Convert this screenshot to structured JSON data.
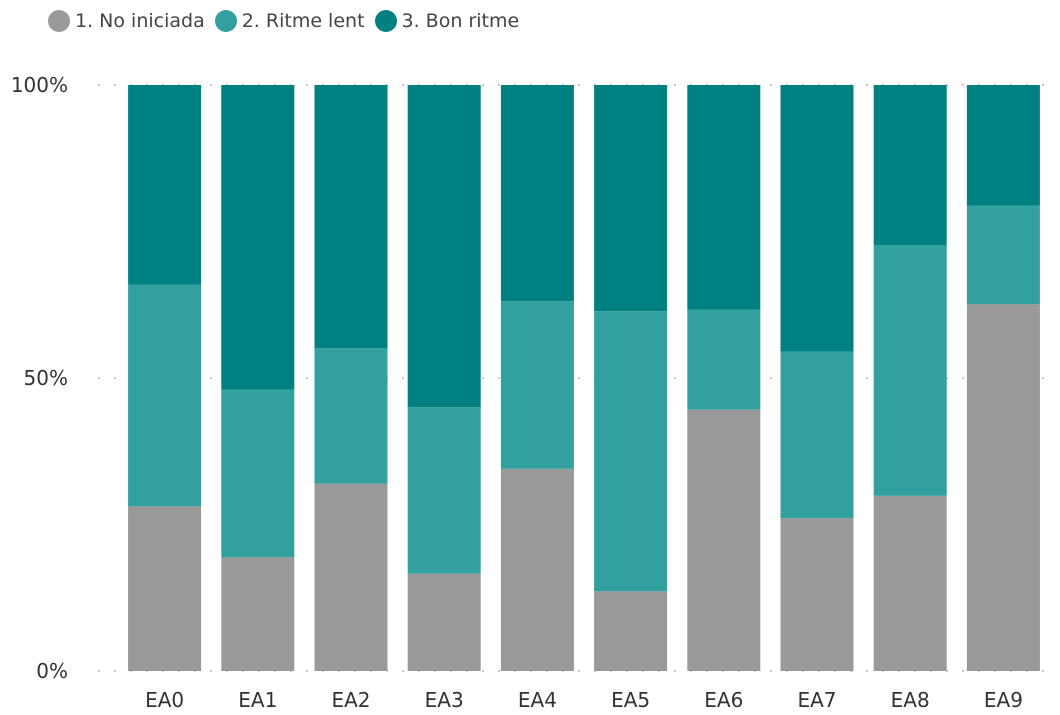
{
  "chart_data": {
    "type": "bar",
    "stacked": true,
    "percent": true,
    "categories": [
      "EA0",
      "EA1",
      "EA2",
      "EA3",
      "EA4",
      "EA5",
      "EA6",
      "EA7",
      "EA8",
      "EA9"
    ],
    "series": [
      {
        "name": "1. No iniciada",
        "color": "#999999",
        "values": [
          28.1,
          19.4,
          32.0,
          16.6,
          34.5,
          13.6,
          44.6,
          26.1,
          29.9,
          62.6
        ]
      },
      {
        "name": "2. Ritme lent",
        "color": "#33a0a0",
        "values": [
          37.8,
          28.6,
          23.1,
          28.4,
          28.6,
          47.8,
          17.1,
          28.4,
          42.8,
          16.8
        ]
      },
      {
        "name": "3. Bon ritme",
        "color": "#008080",
        "values": [
          34.1,
          52.0,
          44.9,
          55.0,
          36.9,
          38.6,
          38.3,
          45.5,
          27.3,
          20.6
        ]
      }
    ],
    "ylim": [
      0,
      100
    ],
    "yticks": [
      "0%",
      "50%",
      "100%"
    ],
    "legend_position": "top-left",
    "grid": "dotted"
  }
}
